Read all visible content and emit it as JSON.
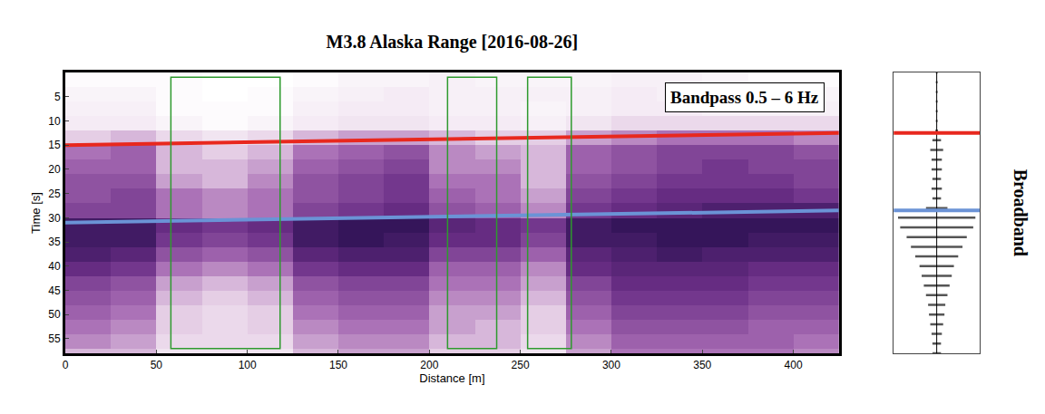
{
  "chart_data": [
    {
      "type": "heatmap",
      "title": "M3.8 Alaska Range [2016-08-26]",
      "x_label": "Distance [m]",
      "y_label": "Time [s]",
      "annotations": [
        "Bandpass 0.5 – 6 Hz"
      ],
      "x": [
        12.5,
        37.5,
        62.5,
        87.5,
        112.5,
        137.5,
        162.5,
        187.5,
        212.5,
        237.5,
        262.5,
        287.5,
        312.5,
        337.5,
        362.5,
        387.5,
        412.5
      ],
      "y": [
        1.5,
        4.5,
        7.5,
        10.5,
        13.5,
        16.5,
        19.5,
        22.5,
        25.5,
        28.5,
        31.5,
        34.5,
        37.5,
        40.5,
        43.5,
        46.5,
        49.5,
        52.5,
        55.5,
        58.5
      ],
      "z": [
        [
          0.05,
          0.05,
          0.05,
          0.03,
          0.03,
          0.05,
          0.08,
          0.08,
          0.1,
          0.08,
          0.08,
          0.08,
          0.1,
          0.1,
          0.08,
          0.05,
          0.05
        ],
        [
          0.08,
          0.08,
          0.05,
          0.03,
          0.05,
          0.08,
          0.1,
          0.12,
          0.1,
          0.1,
          0.1,
          0.1,
          0.12,
          0.1,
          0.1,
          0.08,
          0.08
        ],
        [
          0.1,
          0.1,
          0.05,
          0.05,
          0.05,
          0.1,
          0.12,
          0.12,
          0.1,
          0.1,
          0.08,
          0.1,
          0.12,
          0.12,
          0.1,
          0.1,
          0.1
        ],
        [
          0.12,
          0.12,
          0.08,
          0.05,
          0.08,
          0.12,
          0.15,
          0.15,
          0.12,
          0.12,
          0.1,
          0.15,
          0.2,
          0.2,
          0.2,
          0.2,
          0.2
        ],
        [
          0.25,
          0.3,
          0.2,
          0.15,
          0.2,
          0.3,
          0.35,
          0.35,
          0.3,
          0.25,
          0.25,
          0.35,
          0.4,
          0.45,
          0.45,
          0.45,
          0.4
        ],
        [
          0.45,
          0.5,
          0.3,
          0.25,
          0.3,
          0.45,
          0.5,
          0.55,
          0.4,
          0.35,
          0.3,
          0.5,
          0.55,
          0.6,
          0.6,
          0.6,
          0.55
        ],
        [
          0.5,
          0.5,
          0.3,
          0.3,
          0.35,
          0.5,
          0.55,
          0.6,
          0.4,
          0.4,
          0.3,
          0.5,
          0.55,
          0.6,
          0.65,
          0.6,
          0.6
        ],
        [
          0.55,
          0.55,
          0.35,
          0.3,
          0.4,
          0.55,
          0.6,
          0.65,
          0.45,
          0.45,
          0.3,
          0.55,
          0.6,
          0.65,
          0.65,
          0.65,
          0.6
        ],
        [
          0.55,
          0.6,
          0.45,
          0.4,
          0.45,
          0.55,
          0.6,
          0.65,
          0.5,
          0.45,
          0.35,
          0.6,
          0.65,
          0.7,
          0.7,
          0.7,
          0.65
        ],
        [
          0.6,
          0.6,
          0.45,
          0.4,
          0.45,
          0.6,
          0.65,
          0.7,
          0.55,
          0.5,
          0.4,
          0.65,
          0.7,
          0.75,
          0.8,
          0.8,
          0.8
        ],
        [
          0.85,
          0.85,
          0.7,
          0.65,
          0.7,
          0.85,
          0.9,
          0.9,
          0.75,
          0.7,
          0.65,
          0.85,
          0.9,
          0.9,
          0.9,
          0.9,
          0.9
        ],
        [
          0.85,
          0.85,
          0.65,
          0.6,
          0.65,
          0.85,
          0.9,
          0.85,
          0.7,
          0.7,
          0.6,
          0.85,
          0.85,
          0.9,
          0.9,
          0.85,
          0.85
        ],
        [
          0.8,
          0.75,
          0.55,
          0.5,
          0.55,
          0.75,
          0.8,
          0.8,
          0.6,
          0.6,
          0.5,
          0.75,
          0.8,
          0.85,
          0.8,
          0.8,
          0.8
        ],
        [
          0.7,
          0.65,
          0.45,
          0.4,
          0.45,
          0.65,
          0.7,
          0.7,
          0.5,
          0.5,
          0.4,
          0.7,
          0.75,
          0.75,
          0.75,
          0.7,
          0.7
        ],
        [
          0.6,
          0.55,
          0.35,
          0.3,
          0.35,
          0.55,
          0.6,
          0.6,
          0.45,
          0.45,
          0.35,
          0.6,
          0.7,
          0.7,
          0.7,
          0.65,
          0.65
        ],
        [
          0.55,
          0.5,
          0.3,
          0.25,
          0.3,
          0.5,
          0.55,
          0.55,
          0.4,
          0.4,
          0.3,
          0.55,
          0.65,
          0.65,
          0.65,
          0.6,
          0.6
        ],
        [
          0.5,
          0.45,
          0.25,
          0.2,
          0.25,
          0.45,
          0.5,
          0.5,
          0.35,
          0.35,
          0.25,
          0.5,
          0.6,
          0.6,
          0.6,
          0.55,
          0.55
        ],
        [
          0.45,
          0.4,
          0.25,
          0.2,
          0.25,
          0.4,
          0.45,
          0.45,
          0.35,
          0.3,
          0.25,
          0.45,
          0.55,
          0.55,
          0.55,
          0.5,
          0.5
        ],
        [
          0.4,
          0.35,
          0.2,
          0.2,
          0.2,
          0.35,
          0.4,
          0.4,
          0.3,
          0.3,
          0.2,
          0.4,
          0.5,
          0.5,
          0.5,
          0.5,
          0.45
        ],
        [
          0.3,
          0.3,
          0.15,
          0.15,
          0.15,
          0.3,
          0.35,
          0.35,
          0.25,
          0.25,
          0.15,
          0.35,
          0.45,
          0.45,
          0.45,
          0.45,
          0.4
        ]
      ],
      "xlim": [
        0,
        425
      ],
      "xticks": [
        0,
        50,
        100,
        150,
        200,
        250,
        300,
        350,
        400
      ],
      "ylim": [
        58,
        0
      ],
      "yticks": [
        5,
        10,
        15,
        20,
        25,
        30,
        35,
        40,
        45,
        50,
        55
      ],
      "grid": false,
      "lines": [
        {
          "color": "#e8281e",
          "x": [
            0,
            425
          ],
          "y": [
            15,
            12.5
          ]
        },
        {
          "color": "#6b93d6",
          "x": [
            0,
            425
          ],
          "y": [
            31,
            28.5
          ]
        }
      ],
      "boxes": [
        {
          "color": "#2e9a2e",
          "x": [
            58,
            118
          ],
          "y": [
            1,
            57
          ]
        },
        {
          "color": "#2e9a2e",
          "x": [
            210,
            237
          ],
          "y": [
            1,
            57
          ]
        },
        {
          "color": "#2e9a2e",
          "x": [
            254,
            278
          ],
          "y": [
            1,
            57
          ]
        }
      ]
    },
    {
      "type": "line",
      "y_label": "Broadband",
      "time": [
        0,
        2,
        4,
        6,
        8,
        10,
        12,
        14,
        16,
        18,
        20,
        22,
        24,
        26,
        28,
        30,
        32,
        34,
        36,
        38,
        40,
        42,
        44,
        46,
        48,
        50,
        52,
        54,
        56,
        58
      ],
      "values": [
        0.02,
        0.02,
        0.02,
        0.02,
        0.02,
        0.02,
        0.03,
        0.1,
        0.15,
        0.12,
        0.12,
        0.1,
        0.12,
        0.1,
        0.25,
        0.9,
        0.85,
        0.7,
        0.6,
        0.5,
        0.4,
        0.35,
        0.3,
        0.25,
        0.2,
        0.18,
        0.15,
        0.12,
        0.1,
        0.1
      ],
      "color": "#555555",
      "xlim": [
        -1,
        1
      ],
      "ylim": [
        58,
        0
      ],
      "tick_labels": false,
      "picks": [
        {
          "color": "#e8281e",
          "time": 12.5
        },
        {
          "color": "#6b93d6",
          "time": 28.5
        }
      ]
    }
  ]
}
